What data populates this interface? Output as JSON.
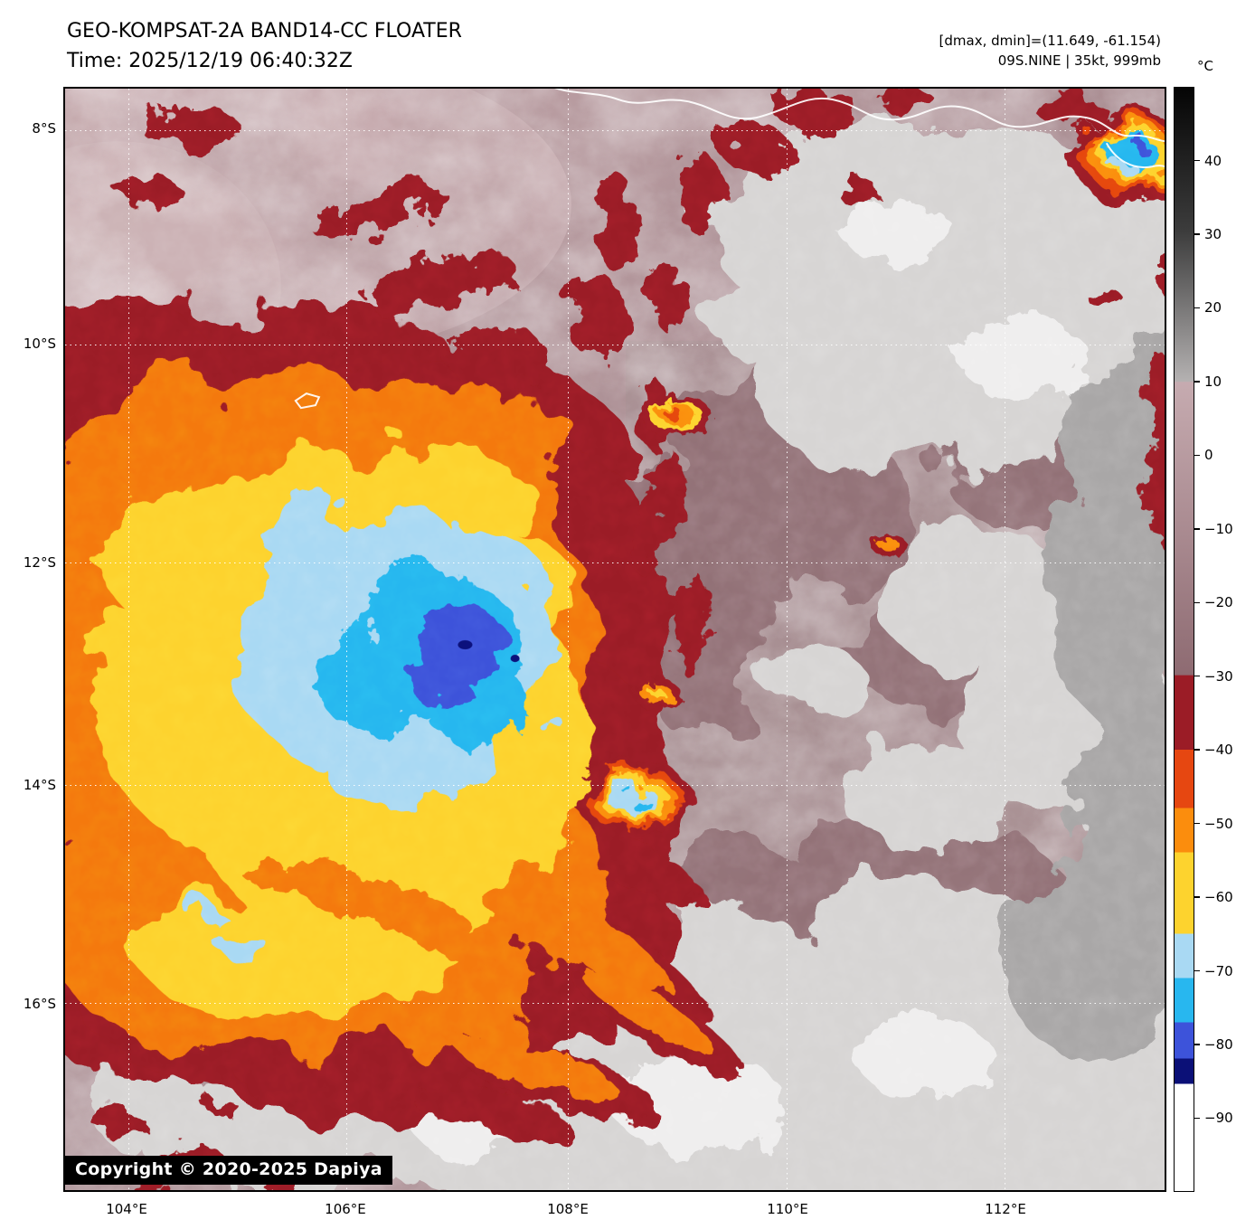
{
  "header": {
    "title": "GEO-KOMPSAT-2A BAND14-CC FLOATER",
    "time": "Time: 2025/12/19 06:40:32Z",
    "dmax_dmin": "[dmax, dmin]=(11.649, -61.154)",
    "storm_info": "09S.NINE | 35kt, 999mb"
  },
  "map": {
    "copyright": "Copyright © 2020-2025 Dapiya",
    "lat_ticks": [
      {
        "label": "8°S",
        "pos": 3.76
      },
      {
        "label": "10°S",
        "pos": 23.24
      },
      {
        "label": "12°S",
        "pos": 43.04
      },
      {
        "label": "14°S",
        "pos": 63.18
      },
      {
        "label": "16°S",
        "pos": 82.98
      }
    ],
    "lon_ticks": [
      {
        "label": "104°E",
        "pos": 5.74
      },
      {
        "label": "106°E",
        "pos": 25.57
      },
      {
        "label": "108°E",
        "pos": 45.74
      },
      {
        "label": "110°E",
        "pos": 65.66
      },
      {
        "label": "112°E",
        "pos": 85.41
      }
    ]
  },
  "colorbar": {
    "unit": "°C",
    "ticks": [
      {
        "label": "40",
        "pos": 6.67
      },
      {
        "label": "30",
        "pos": 13.33
      },
      {
        "label": "20",
        "pos": 20.0
      },
      {
        "label": "10",
        "pos": 26.67
      },
      {
        "label": "0",
        "pos": 33.33
      },
      {
        "label": "−10",
        "pos": 40.0
      },
      {
        "label": "−20",
        "pos": 46.67
      },
      {
        "label": "−30",
        "pos": 53.33
      },
      {
        "label": "−40",
        "pos": 60.0
      },
      {
        "label": "−50",
        "pos": 66.67
      },
      {
        "label": "−60",
        "pos": 73.33
      },
      {
        "label": "−70",
        "pos": 80.0
      },
      {
        "label": "−80",
        "pos": 86.67
      },
      {
        "label": "−90",
        "pos": 93.33
      }
    ],
    "gradient_stops": [
      [
        0,
        "#050505"
      ],
      [
        13,
        "#3c3c3c"
      ],
      [
        26.6,
        "#b4b1b1"
      ],
      [
        26.7,
        "#c6abb0"
      ],
      [
        53.2,
        "#8e6b72"
      ],
      [
        53.3,
        "#9b1c26"
      ],
      [
        60,
        "#9b1c26"
      ],
      [
        60,
        "#e64711"
      ],
      [
        65.3,
        "#e64711"
      ],
      [
        65.3,
        "#fb8d0d"
      ],
      [
        69.3,
        "#fb8d0d"
      ],
      [
        69.3,
        "#fdd32e"
      ],
      [
        76.7,
        "#fdd32e"
      ],
      [
        76.7,
        "#a9d9f3"
      ],
      [
        80.7,
        "#a9d9f3"
      ],
      [
        80.7,
        "#28b7ef"
      ],
      [
        84.7,
        "#28b7ef"
      ],
      [
        84.7,
        "#3d53da"
      ],
      [
        88,
        "#3d53da"
      ],
      [
        88,
        "#0b1077"
      ],
      [
        90.3,
        "#0b1077"
      ],
      [
        90.3,
        "#ffffff"
      ],
      [
        100,
        "#ffffff"
      ]
    ]
  }
}
